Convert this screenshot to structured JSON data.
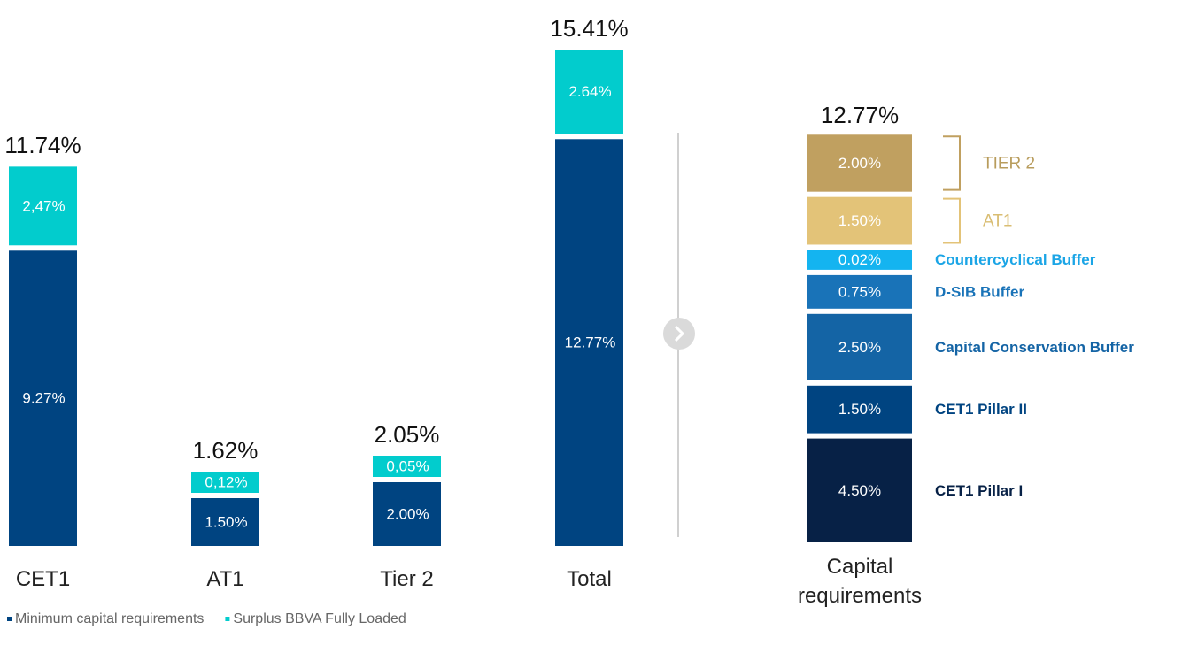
{
  "chart_data": [
    {
      "type": "bar",
      "stacked": true,
      "categories": [
        "CET1",
        "AT1",
        "Tier 2",
        "Total"
      ],
      "series": [
        {
          "name": "Minimum capital requirements",
          "color": "#004481",
          "values": [
            9.27,
            1.5,
            2.0,
            12.77
          ],
          "value_labels": [
            "9.27%",
            "1.50%",
            "2.00%",
            "12.77%"
          ]
        },
        {
          "name": "Surplus BBVA Fully Loaded",
          "color": "#02cccd",
          "values": [
            2.47,
            0.12,
            0.05,
            2.64
          ],
          "value_labels": [
            "2,47%",
            "0,12%",
            "0,05%",
            "2.64%"
          ]
        }
      ],
      "totals": [
        11.74,
        1.62,
        2.05,
        15.41
      ],
      "total_labels": [
        "11.74%",
        "1.62%",
        "2.05%",
        "15.41%"
      ],
      "legend": "bottom-left"
    },
    {
      "type": "bar",
      "stacked": true,
      "categories": [
        "Capital requirements"
      ],
      "series": [
        {
          "name": "CET1 Pillar I",
          "color": "#072146",
          "label_color": "#072146",
          "values": [
            4.5
          ],
          "value_labels": [
            "4.50%"
          ]
        },
        {
          "name": "CET1 Pillar II",
          "color": "#004481",
          "label_color": "#004481",
          "values": [
            1.5
          ],
          "value_labels": [
            "1.50%"
          ]
        },
        {
          "name": "Capital Conservation Buffer",
          "color": "#1464a5",
          "label_color": "#1464a5",
          "values": [
            2.5
          ],
          "value_labels": [
            "2.50%"
          ]
        },
        {
          "name": "D-SIB Buffer",
          "color": "#1973b8",
          "label_color": "#1973b8",
          "values": [
            0.75
          ],
          "value_labels": [
            "0.75%"
          ]
        },
        {
          "name": "Countercyclical Buffer",
          "color": "#14b4f0",
          "label_color": "#1ba5e6",
          "values": [
            0.02
          ],
          "value_labels": [
            "0.02%"
          ]
        },
        {
          "name": "AT1",
          "color": "#e3c378",
          "label_color": "#d9bd72",
          "bracketed": true,
          "values": [
            1.5
          ],
          "value_labels": [
            "1.50%"
          ]
        },
        {
          "name": "TIER 2",
          "color": "#c0a060",
          "label_color": "#b89c5c",
          "bracketed": true,
          "values": [
            2.0
          ],
          "value_labels": [
            "2.00%"
          ]
        }
      ],
      "totals": [
        12.77
      ],
      "total_labels": [
        "12.77%"
      ],
      "legend": "right"
    }
  ]
}
